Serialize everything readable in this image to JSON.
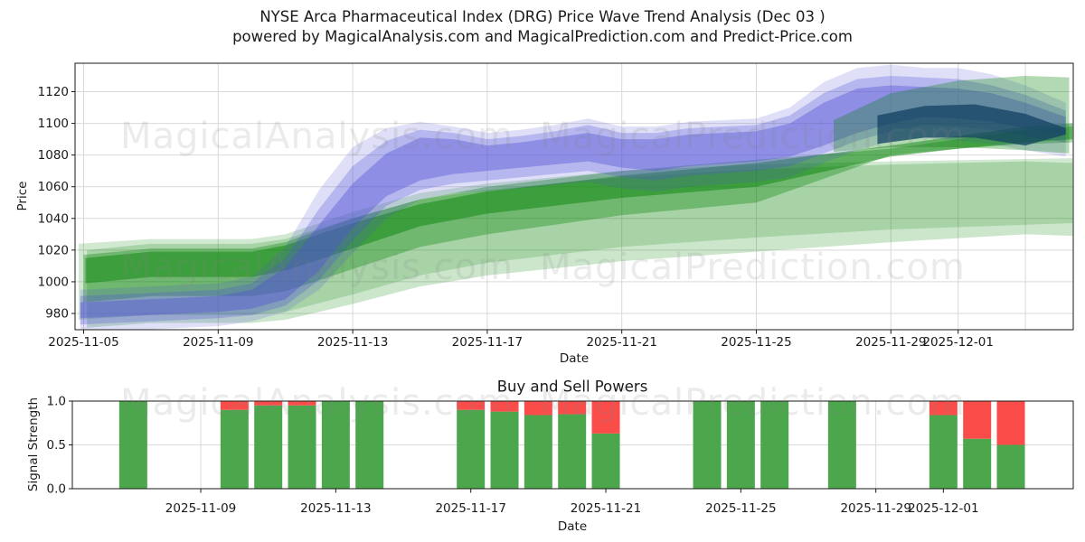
{
  "header": {
    "line1": "NYSE Arca Pharmaceutical Index (DRG) Price Wave Trend Analysis (Dec 03 )",
    "line2": "powered by MagicalAnalysis.com and MagicalPrediction.com and Predict-Price.com"
  },
  "watermarks": [
    {
      "text": "MagicalAnalysis.com"
    },
    {
      "text": "MagicalPrediction.com"
    },
    {
      "text": "MagicalAnalysis.com"
    },
    {
      "text": "MagicalPrediction.com"
    },
    {
      "text": "MagicalAnalysis.com"
    },
    {
      "text": "MagicalPrediction.com"
    }
  ],
  "colors": {
    "grid": "#d9d9d9",
    "spine": "#1a1a1a",
    "text": "#1a1a1a",
    "buy": "#4ca64c",
    "sell": "#fa4d4a"
  },
  "chart_data": [
    {
      "type": "area",
      "ylabel": "Price",
      "xlabel": "Date",
      "ylim": [
        970,
        1138
      ],
      "grid": true,
      "y_ticks": [
        980,
        1000,
        1020,
        1040,
        1060,
        1080,
        1100,
        1120
      ],
      "x_unit": "days offset from 2025-11-05",
      "x_ticks": [
        {
          "day": 0,
          "label": "2025-11-05"
        },
        {
          "day": 4,
          "label": "2025-11-09"
        },
        {
          "day": 8,
          "label": "2025-11-13"
        },
        {
          "day": 12,
          "label": "2025-11-17"
        },
        {
          "day": 16,
          "label": "2025-11-21"
        },
        {
          "day": 20,
          "label": "2025-11-25"
        },
        {
          "day": 24,
          "label": "2025-11-29"
        },
        {
          "day": 26,
          "label": "2025-12-01"
        }
      ],
      "extra_gridline_days": [
        28
      ],
      "bands": [
        {
          "name": "green-outer",
          "fill": "rgba(0,128,0,0.18)",
          "x": [
            -0.15,
            2,
            5,
            6,
            8,
            10,
            12,
            16,
            20,
            24,
            29.4
          ],
          "hi": [
            1024,
            1027,
            1027,
            1030,
            1044,
            1056,
            1062,
            1070,
            1074,
            1076,
            1078
          ],
          "lo": [
            976,
            979,
            979,
            981,
            992,
            1004,
            1012,
            1022,
            1028,
            1033,
            1037
          ]
        },
        {
          "name": "green-light",
          "fill": "rgba(0,128,0,0.20)",
          "x": [
            0.1,
            2,
            5,
            6,
            8,
            10,
            12,
            16,
            20,
            24,
            28,
            29.4
          ],
          "hi": [
            1020,
            1024,
            1024,
            1027,
            1040,
            1052,
            1058,
            1066,
            1071,
            1074,
            1076,
            1075
          ],
          "lo": [
            971,
            974,
            974,
            976,
            986,
            997,
            1004,
            1013,
            1019,
            1025,
            1030,
            1029
          ]
        },
        {
          "name": "green-mid",
          "fill": "rgba(0,128,0,0.33)",
          "x": [
            0,
            2,
            5,
            6,
            8,
            10,
            12,
            16,
            20,
            24,
            26,
            28,
            29.4
          ],
          "hi": [
            1017,
            1021,
            1021,
            1025,
            1040,
            1052,
            1060,
            1070,
            1077,
            1084,
            1090,
            1096,
            1098
          ],
          "lo": [
            987,
            991,
            991,
            994,
            1008,
            1022,
            1030,
            1042,
            1050,
            1080,
            1084,
            1087,
            1088
          ]
        },
        {
          "name": "green-core",
          "fill": "rgba(0,128,0,0.45)",
          "x": [
            0.05,
            2,
            5,
            6,
            8,
            10,
            12,
            16,
            20,
            24,
            26,
            28,
            29.4
          ],
          "hi": [
            1015,
            1019,
            1019,
            1023,
            1037,
            1049,
            1057,
            1067,
            1075,
            1086,
            1092,
            1098,
            1100
          ],
          "lo": [
            999,
            1003,
            1003,
            1007,
            1021,
            1035,
            1043,
            1053,
            1060,
            1079,
            1084,
            1088,
            1090
          ]
        },
        {
          "name": "blue-outer",
          "fill": "rgba(80,80,215,0.18)",
          "x": [
            -0.1,
            2,
            4,
            5,
            6,
            7,
            8,
            9,
            10,
            11,
            12,
            13,
            14,
            15,
            16,
            17,
            18,
            20,
            21,
            22,
            23,
            24,
            25,
            26,
            27,
            28,
            29.2
          ],
          "hi": [
            995,
            997,
            999,
            1003,
            1022,
            1058,
            1085,
            1097,
            1101,
            1098,
            1094,
            1096,
            1099,
            1103,
            1098,
            1098,
            1101,
            1103,
            1110,
            1126,
            1135,
            1137,
            1135,
            1135,
            1131,
            1124,
            1113
          ],
          "lo": [
            968,
            970,
            972,
            975,
            981,
            995,
            1018,
            1040,
            1052,
            1056,
            1057,
            1059,
            1061,
            1063,
            1059,
            1057,
            1060,
            1063,
            1066,
            1075,
            1083,
            1089,
            1091,
            1089,
            1087,
            1083,
            1079
          ]
        },
        {
          "name": "blue-mid",
          "fill": "rgba(80,80,215,0.28)",
          "x": [
            -0.1,
            2,
            4,
            5,
            6,
            7,
            8,
            9,
            10,
            11,
            12,
            13,
            14,
            15,
            16,
            17,
            18,
            20,
            21,
            22,
            23,
            24,
            25,
            26,
            27,
            28,
            29.2
          ],
          "hi": [
            991,
            993,
            995,
            999,
            1015,
            1046,
            1073,
            1089,
            1096,
            1094,
            1090,
            1092,
            1095,
            1099,
            1094,
            1094,
            1097,
            1099,
            1105,
            1119,
            1128,
            1130,
            1129,
            1128,
            1124,
            1118,
            1108
          ],
          "lo": [
            973,
            975,
            977,
            979,
            985,
            1001,
            1026,
            1048,
            1058,
            1062,
            1064,
            1066,
            1068,
            1070,
            1066,
            1064,
            1067,
            1070,
            1073,
            1081,
            1089,
            1095,
            1099,
            1098,
            1096,
            1092,
            1088
          ]
        },
        {
          "name": "blue-core",
          "fill": "rgba(80,80,215,0.40)",
          "x": [
            -0.1,
            2,
            4,
            5,
            6,
            7,
            8,
            9,
            10,
            11,
            12,
            13,
            14,
            15,
            16,
            17,
            18,
            20,
            21,
            22,
            23,
            24,
            25,
            26,
            27,
            28,
            29.2
          ],
          "hi": [
            987,
            989,
            991,
            995,
            1009,
            1036,
            1062,
            1081,
            1091,
            1090,
            1086,
            1088,
            1091,
            1094,
            1090,
            1090,
            1093,
            1095,
            1100,
            1113,
            1122,
            1124,
            1123,
            1122,
            1119,
            1113,
            1104
          ],
          "lo": [
            977,
            979,
            981,
            983,
            989,
            1007,
            1034,
            1054,
            1064,
            1068,
            1070,
            1072,
            1074,
            1076,
            1072,
            1070,
            1073,
            1076,
            1079,
            1086,
            1094,
            1100,
            1104,
            1103,
            1101,
            1097,
            1093
          ]
        },
        {
          "name": "navy-arrow",
          "fill": "rgba(25,35,140,0.72)",
          "x": [
            23.6,
            25,
            26.5,
            28,
            29.2
          ],
          "hi": [
            1105,
            1111,
            1112,
            1106,
            1097
          ],
          "lo": [
            1087,
            1091,
            1091,
            1086,
            1093
          ]
        },
        {
          "name": "green-top-right",
          "fill": "rgba(0,128,0,0.30)",
          "x": [
            22.3,
            24,
            26,
            28,
            29.3
          ],
          "hi": [
            1102,
            1119,
            1127,
            1130,
            1129
          ],
          "lo": [
            1082,
            1085,
            1085,
            1083,
            1081
          ]
        }
      ]
    },
    {
      "type": "bar",
      "title": "Buy and Sell Powers",
      "ylabel": "Signal Strength",
      "xlabel": "Date",
      "ylim": [
        0,
        1
      ],
      "grid": true,
      "y_ticks": [
        "0.0",
        "0.5",
        "1.0"
      ],
      "x_unit": "days offset from 2025-11-05",
      "x_ticks": [
        {
          "day": 4,
          "label": "2025-11-09"
        },
        {
          "day": 8,
          "label": "2025-11-13"
        },
        {
          "day": 12,
          "label": "2025-11-17"
        },
        {
          "day": 16,
          "label": "2025-11-21"
        },
        {
          "day": 20,
          "label": "2025-11-25"
        },
        {
          "day": 24,
          "label": "2025-11-29"
        },
        {
          "day": 26,
          "label": "2025-12-01"
        }
      ],
      "series": [
        {
          "name": "buy-power",
          "color": "#4ca64c"
        },
        {
          "name": "sell-power",
          "color": "#fa4d4a"
        }
      ],
      "bars": [
        {
          "date": "2025-11-07",
          "day": 2,
          "buy": 1.0,
          "sell": 0.0
        },
        {
          "date": "2025-11-10",
          "day": 5,
          "buy": 0.9,
          "sell": 0.1
        },
        {
          "date": "2025-11-11",
          "day": 6,
          "buy": 0.95,
          "sell": 0.05
        },
        {
          "date": "2025-11-12",
          "day": 7,
          "buy": 0.95,
          "sell": 0.05
        },
        {
          "date": "2025-11-13",
          "day": 8,
          "buy": 1.0,
          "sell": 0.0
        },
        {
          "date": "2025-11-14",
          "day": 9,
          "buy": 1.0,
          "sell": 0.0
        },
        {
          "date": "2025-11-17",
          "day": 12,
          "buy": 0.9,
          "sell": 0.1
        },
        {
          "date": "2025-11-18",
          "day": 13,
          "buy": 0.88,
          "sell": 0.12
        },
        {
          "date": "2025-11-19",
          "day": 14,
          "buy": 0.84,
          "sell": 0.16
        },
        {
          "date": "2025-11-20",
          "day": 15,
          "buy": 0.85,
          "sell": 0.15
        },
        {
          "date": "2025-11-21",
          "day": 16,
          "buy": 0.63,
          "sell": 0.37
        },
        {
          "date": "2025-11-24",
          "day": 19,
          "buy": 1.0,
          "sell": 0.0
        },
        {
          "date": "2025-11-25",
          "day": 20,
          "buy": 1.0,
          "sell": 0.0
        },
        {
          "date": "2025-11-26",
          "day": 21,
          "buy": 1.0,
          "sell": 0.0
        },
        {
          "date": "2025-11-28",
          "day": 23,
          "buy": 1.0,
          "sell": 0.0
        },
        {
          "date": "2025-12-01",
          "day": 26,
          "buy": 0.84,
          "sell": 0.16
        },
        {
          "date": "2025-12-02",
          "day": 27,
          "buy": 0.57,
          "sell": 0.43
        },
        {
          "date": "2025-12-03",
          "day": 28,
          "buy": 0.5,
          "sell": 0.5
        }
      ]
    }
  ]
}
